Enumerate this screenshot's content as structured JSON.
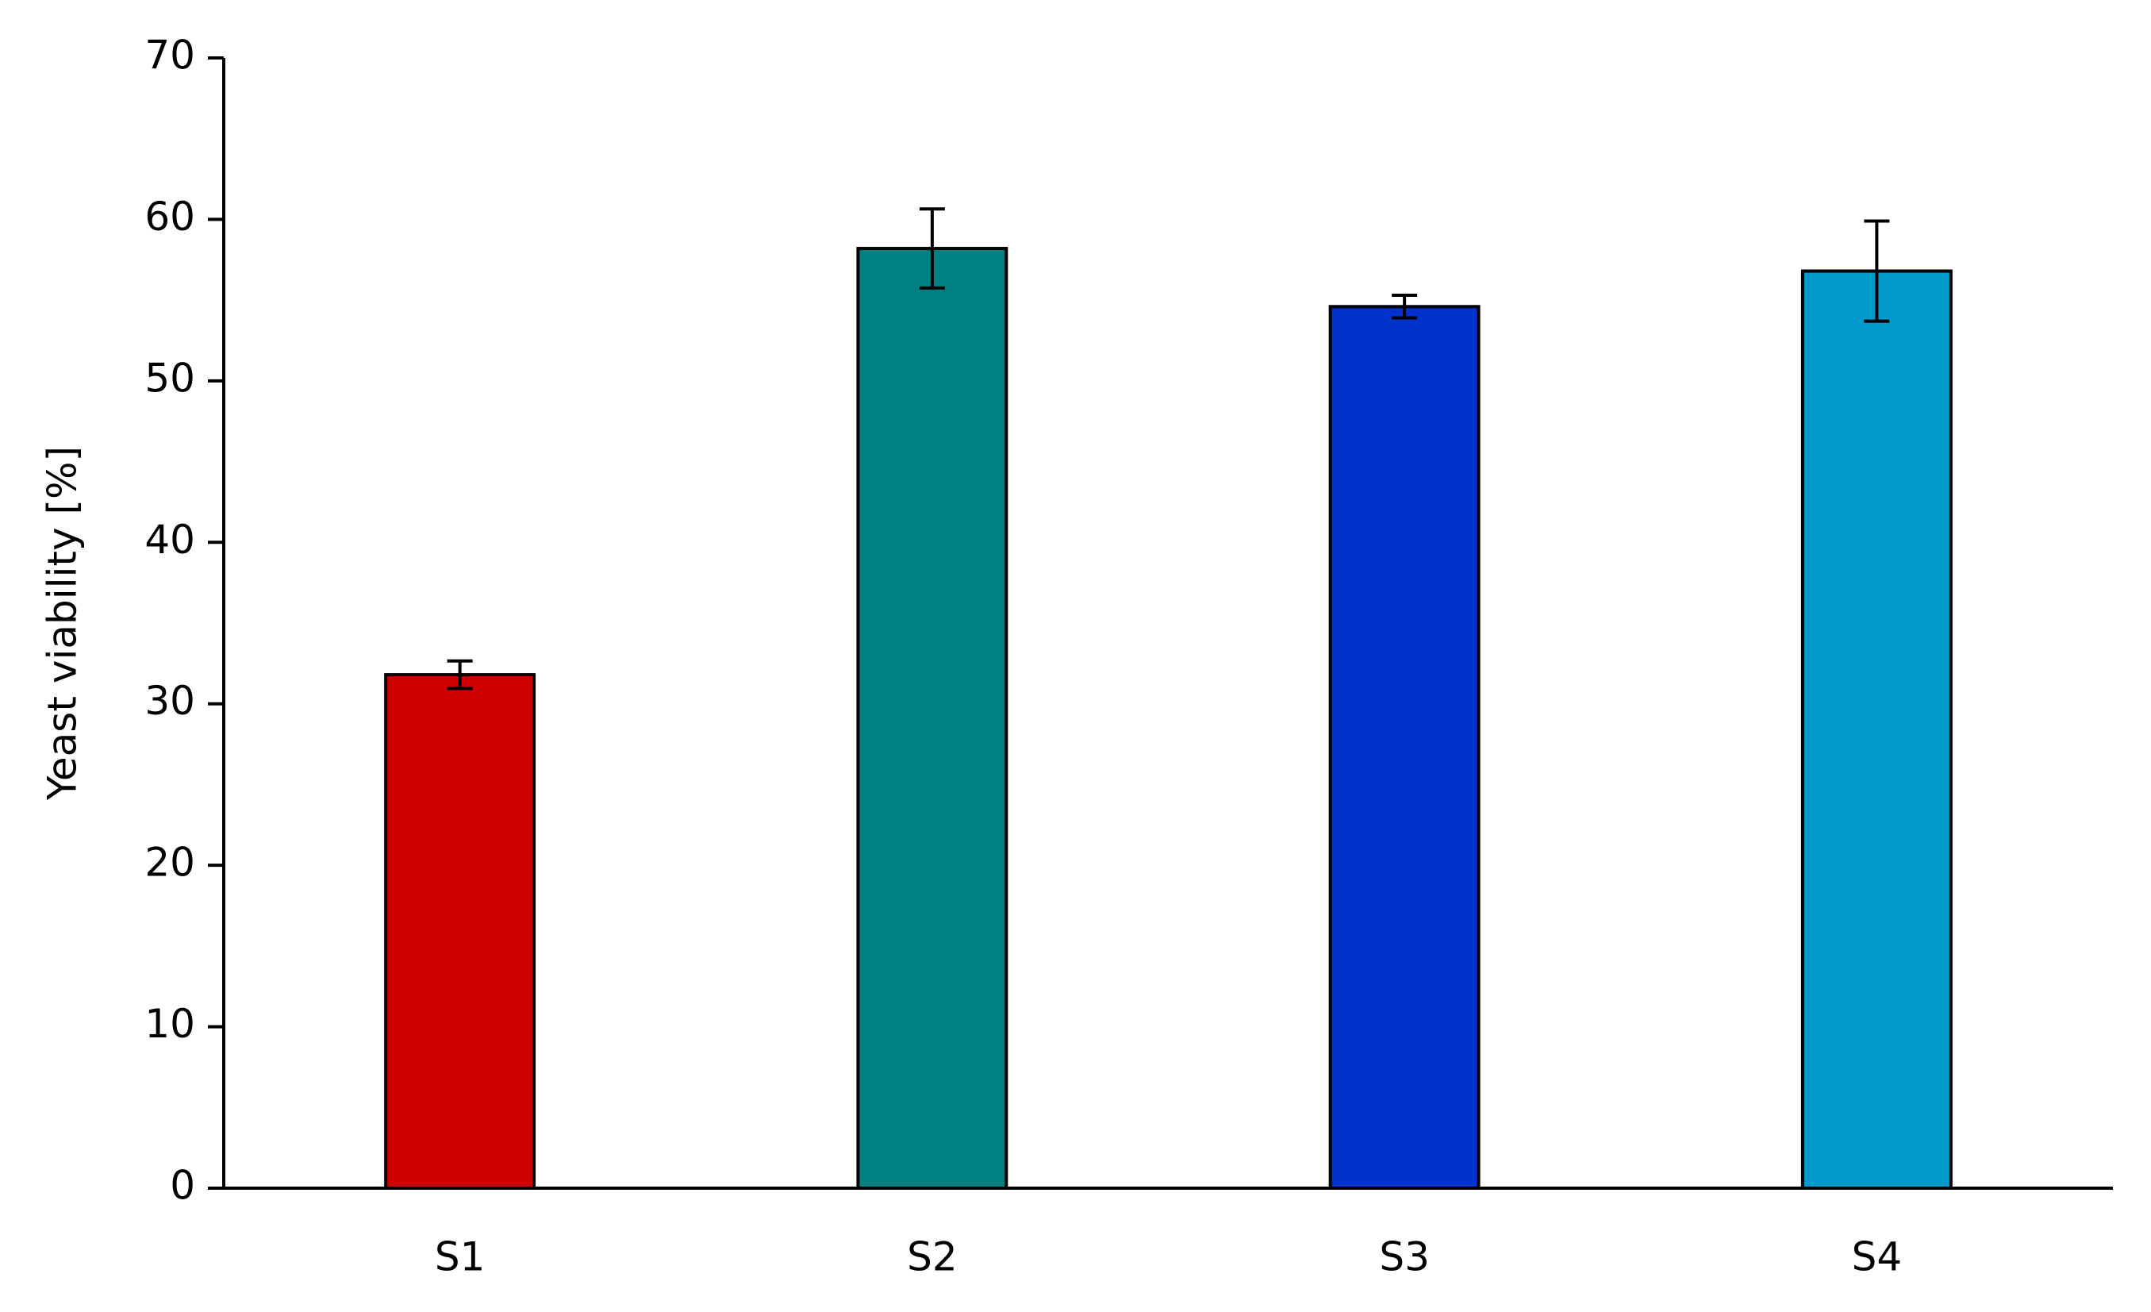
{
  "chart_data": {
    "type": "bar",
    "y_label": "Yeast viability  [%]",
    "categories": [
      "S1",
      "S2",
      "S3",
      "S4"
    ],
    "values": [
      31.8,
      58.2,
      54.6,
      56.8
    ],
    "errors": [
      0.85,
      2.45,
      0.7,
      3.1
    ],
    "colors": [
      "#cc0000",
      "#008080",
      "#0033cc",
      "#0099cc"
    ],
    "ylim": [
      0,
      70
    ],
    "yticks": [
      0,
      10,
      20,
      30,
      40,
      50,
      60,
      70
    ]
  }
}
